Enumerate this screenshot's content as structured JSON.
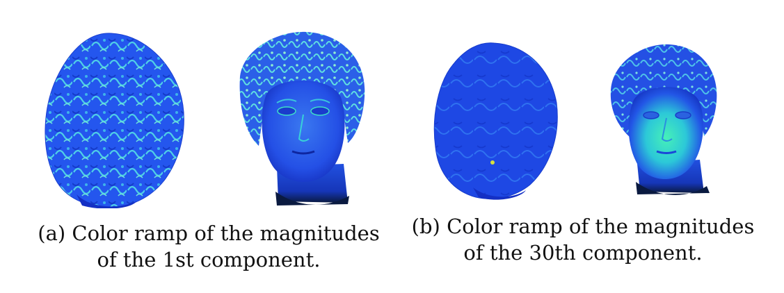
{
  "subfigures": [
    {
      "id": "a",
      "caption_line1": "(a) Color ramp of the magnitudes",
      "caption_line2": "of the 1st component."
    },
    {
      "id": "b",
      "caption_line1": "(b) Color ramp of the magnitudes",
      "caption_line2": "of the 30th component."
    }
  ],
  "colors": {
    "base_blue": "#1f4fe8",
    "deep_blue": "#0b23a8",
    "cyan_highlight": "#33d6e0",
    "green_highlight": "#3ef0b0",
    "neck_shadow": "#0a1a40"
  }
}
